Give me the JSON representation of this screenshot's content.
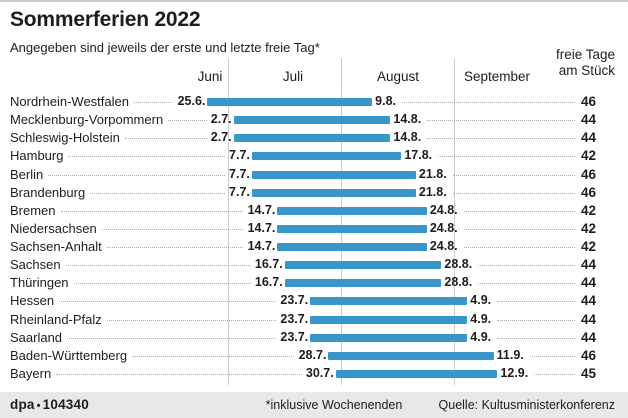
{
  "title": "Sommerferien 2022",
  "subtitle": "Angegeben sind jeweils der erste und letzte freie Tag*",
  "right_header": {
    "line1": "freie Tage",
    "line2": "am Stück"
  },
  "months": [
    {
      "label": "Juni"
    },
    {
      "label": "Juli"
    },
    {
      "label": "August"
    },
    {
      "label": "September"
    }
  ],
  "chart_data": {
    "type": "bar",
    "subtype": "timeline-gantt",
    "x_axis": {
      "labels": [
        "Juni",
        "Juli",
        "August",
        "September"
      ],
      "unit": "date"
    },
    "value_column_header": "freie Tage am Stück",
    "rows": [
      {
        "state": "Nordrhein-Westfalen",
        "start": "25.6.",
        "end": "9.8.",
        "days": 46
      },
      {
        "state": "Mecklenburg-Vorpommern",
        "start": "2.7.",
        "end": "14.8.",
        "days": 44
      },
      {
        "state": "Schleswig-Holstein",
        "start": "2.7.",
        "end": "14.8.",
        "days": 44
      },
      {
        "state": "Hamburg",
        "start": "7.7.",
        "end": "17.8.",
        "days": 42
      },
      {
        "state": "Berlin",
        "start": "7.7.",
        "end": "21.8.",
        "days": 46
      },
      {
        "state": "Brandenburg",
        "start": "7.7.",
        "end": "21.8.",
        "days": 46
      },
      {
        "state": "Bremen",
        "start": "14.7.",
        "end": "24.8.",
        "days": 42
      },
      {
        "state": "Niedersachsen",
        "start": "14.7.",
        "end": "24.8.",
        "days": 42
      },
      {
        "state": "Sachsen-Anhalt",
        "start": "14.7.",
        "end": "24.8.",
        "days": 42
      },
      {
        "state": "Sachsen",
        "start": "16.7.",
        "end": "28.8.",
        "days": 44
      },
      {
        "state": "Thüringen",
        "start": "16.7.",
        "end": "28.8.",
        "days": 44
      },
      {
        "state": "Hessen",
        "start": "23.7.",
        "end": "4.9.",
        "days": 44
      },
      {
        "state": "Rheinland-Pfalz",
        "start": "23.7.",
        "end": "4.9.",
        "days": 44
      },
      {
        "state": "Saarland",
        "start": "23.7.",
        "end": "4.9.",
        "days": 44
      },
      {
        "state": "Baden-Württemberg",
        "start": "28.7.",
        "end": "11.9.",
        "days": 46
      },
      {
        "state": "Bayern",
        "start": "30.7.",
        "end": "12.9.",
        "days": 45
      }
    ]
  },
  "footer": {
    "credit": "dpa",
    "credit_sep": "•",
    "credit_id": "104340",
    "note": "*inklusive Wochenenden",
    "source": "Quelle: Kultusministerkonferenz"
  },
  "colors": {
    "bar": "#3996cb",
    "grid": "#cccccc",
    "leader": "#b0b0b0",
    "footer_bg": "#e8e8e6",
    "top_border": "#c9c9c9",
    "text": "#1d1d1b"
  }
}
